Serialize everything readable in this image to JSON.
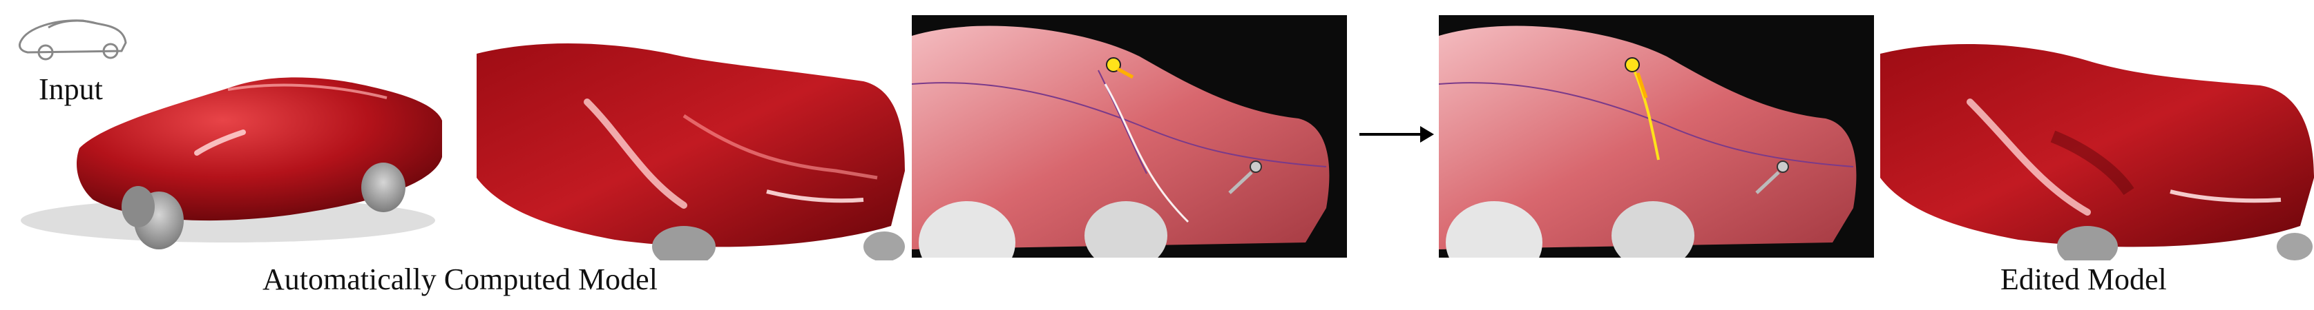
{
  "captions": {
    "input": "Input",
    "automatic": "Automatically Computed Model",
    "edited": "Edited Model"
  },
  "colors": {
    "body_red": "#b3121a",
    "highlight": "#ff8a8a",
    "tire": "#9a9a9a",
    "viewport_bg": "#0b0b0b",
    "handle_yellow": "#ffe21a"
  },
  "icons": {
    "transition": "right-arrow-icon",
    "control_point": "yellow-control-point-icon"
  }
}
